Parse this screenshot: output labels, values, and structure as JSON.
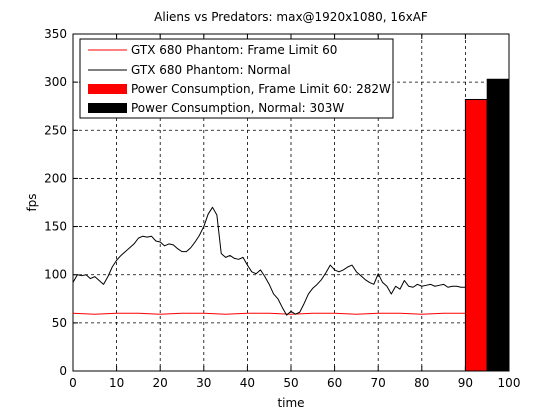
{
  "chart_data": {
    "type": "line",
    "title": "Aliens vs Predators: max@1920x1080, 16xAF",
    "xlabel": "time",
    "ylabel": "fps",
    "xlim": [
      0,
      100
    ],
    "ylim": [
      0,
      350
    ],
    "xticks": [
      0,
      10,
      20,
      30,
      40,
      50,
      60,
      70,
      80,
      90,
      100
    ],
    "yticks": [
      0,
      50,
      100,
      150,
      200,
      250,
      300,
      350
    ],
    "grid": true,
    "legend_position": "top-left",
    "colors": {
      "frame_limit": "#ff0000",
      "normal": "#000000",
      "axis": "#000000",
      "background": "#ffffff"
    },
    "series": [
      {
        "name": "GTX 680 Phantom: Frame Limit 60",
        "kind": "line",
        "color": "#ff0000",
        "x": [
          0,
          5,
          10,
          15,
          20,
          25,
          30,
          35,
          40,
          45,
          50,
          55,
          60,
          65,
          70,
          75,
          80,
          85,
          90
        ],
        "y": [
          60,
          59,
          60,
          60,
          59,
          60,
          60,
          59,
          60,
          60,
          59,
          60,
          60,
          59,
          60,
          60,
          59,
          60,
          60
        ]
      },
      {
        "name": "GTX 680 Phantom: Normal",
        "kind": "line",
        "color": "#000000",
        "x": [
          0,
          1,
          2,
          3,
          4,
          5,
          6,
          7,
          8,
          9,
          10,
          11,
          12,
          13,
          14,
          15,
          16,
          17,
          18,
          19,
          20,
          21,
          22,
          23,
          24,
          25,
          26,
          27,
          28,
          29,
          30,
          31,
          32,
          33,
          34,
          35,
          36,
          37,
          38,
          39,
          40,
          41,
          42,
          43,
          44,
          45,
          46,
          47,
          48,
          49,
          50,
          51,
          52,
          53,
          54,
          55,
          56,
          57,
          58,
          59,
          60,
          61,
          62,
          63,
          64,
          65,
          66,
          67,
          68,
          69,
          70,
          71,
          72,
          73,
          74,
          75,
          76,
          77,
          78,
          79,
          80,
          81,
          82,
          83,
          84,
          85,
          86,
          87,
          88,
          89,
          90
        ],
        "y": [
          92,
          100,
          99,
          100,
          96,
          98,
          94,
          90,
          98,
          108,
          115,
          120,
          124,
          128,
          132,
          138,
          140,
          139,
          140,
          135,
          134,
          130,
          132,
          131,
          127,
          124,
          124,
          128,
          134,
          141,
          150,
          163,
          170,
          162,
          122,
          118,
          120,
          117,
          116,
          118,
          110,
          103,
          101,
          105,
          98,
          90,
          80,
          75,
          66,
          58,
          62,
          59,
          61,
          70,
          80,
          86,
          90,
          95,
          102,
          110,
          105,
          103,
          105,
          108,
          110,
          103,
          99,
          95,
          92,
          90,
          101,
          92,
          88,
          80,
          88,
          85,
          94,
          88,
          87,
          90,
          88,
          89,
          90,
          88,
          89,
          90,
          87,
          88,
          88,
          87,
          87
        ]
      },
      {
        "name": "Power Consumption, Frame Limit 60: 282W",
        "kind": "bar",
        "color": "#ff0000",
        "x_start": 90,
        "x_end": 95,
        "value": 282
      },
      {
        "name": "Power Consumption, Normal: 303W",
        "kind": "bar",
        "color": "#000000",
        "x_start": 95,
        "x_end": 100,
        "value": 303
      }
    ]
  }
}
